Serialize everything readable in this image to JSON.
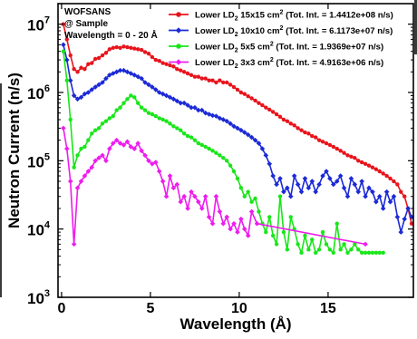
{
  "chart_data": {
    "type": "line",
    "title": "",
    "xlabel": "Wavelength (Å)",
    "ylabel": "Neutron Current (n/s)",
    "xlim": [
      -0.2,
      19.8
    ],
    "ylim": [
      1000,
      20000000
    ],
    "yscale": "log",
    "x_ticks": [
      "0",
      "5",
      "10",
      "15"
    ],
    "y_ticks": [
      {
        "base": "10",
        "exp": "3"
      },
      {
        "base": "10",
        "exp": "4"
      },
      {
        "base": "10",
        "exp": "5"
      },
      {
        "base": "10",
        "exp": "6"
      },
      {
        "base": "10",
        "exp": "7"
      }
    ],
    "annotation": [
      "WOFSANS",
      "@ Sample",
      "Wavelength = 0 - 20 Å"
    ],
    "legend_position": "top-right",
    "series": [
      {
        "name": "Lower LD2 15x15 cm2 (Tot. Int. = 1.4412e+08 n/s)",
        "legend": {
          "pre": "Lower LD",
          "sub": "2",
          "mid": " 15x15 cm",
          "sup": "2",
          "post": " (Tot. Int. = 1.4412e+08 n/s)"
        },
        "color": "#e8141c",
        "marker": "circle",
        "x": [
          0.1,
          0.3,
          0.5,
          0.7,
          0.9,
          1.1,
          1.3,
          1.5,
          1.7,
          1.9,
          2.1,
          2.3,
          2.5,
          2.7,
          2.9,
          3.1,
          3.3,
          3.5,
          3.7,
          3.9,
          4.1,
          4.3,
          4.5,
          4.7,
          4.9,
          5.1,
          5.3,
          5.5,
          5.7,
          5.9,
          6.1,
          6.3,
          6.5,
          6.7,
          6.9,
          7.1,
          7.3,
          7.5,
          7.7,
          7.9,
          8.1,
          8.3,
          8.5,
          8.7,
          8.9,
          9.1,
          9.3,
          9.5,
          9.7,
          9.9,
          10.1,
          10.3,
          10.5,
          10.7,
          10.9,
          11.1,
          11.3,
          11.5,
          11.7,
          11.9,
          12.1,
          12.3,
          12.5,
          12.7,
          12.9,
          13.1,
          13.3,
          13.5,
          13.7,
          13.9,
          14.1,
          14.3,
          14.5,
          14.7,
          14.9,
          15.1,
          15.3,
          15.5,
          15.7,
          15.9,
          16.1,
          16.3,
          16.5,
          16.7,
          16.9,
          17.1,
          17.3,
          17.5,
          17.7,
          17.9,
          18.1,
          18.3,
          18.5,
          18.7,
          18.9,
          19.1,
          19.3,
          19.5,
          19.7
        ],
        "y": [
          10000000,
          6000000,
          3500000,
          2200000,
          2000000,
          2300000,
          2200000,
          2600000,
          2700000,
          3100000,
          3200000,
          3500000,
          3800000,
          4300000,
          4500000,
          4600000,
          4500000,
          4700000,
          4600000,
          4500000,
          4400000,
          4300000,
          4200000,
          3900000,
          3700000,
          3300000,
          3000000,
          2900000,
          2700000,
          2600000,
          2500000,
          2400000,
          2200000,
          2100000,
          2000000,
          1900000,
          1800000,
          1700000,
          1700000,
          1600000,
          1600000,
          1500000,
          1500000,
          1400000,
          1500000,
          1400000,
          1400000,
          1300000,
          1200000,
          1100000,
          1000000,
          950000,
          880000,
          820000,
          760000,
          700000,
          650000,
          600000,
          560000,
          520000,
          480000,
          440000,
          400000,
          380000,
          350000,
          330000,
          300000,
          280000,
          260000,
          250000,
          230000,
          220000,
          200000,
          190000,
          180000,
          170000,
          160000,
          150000,
          140000,
          130000,
          120000,
          115000,
          110000,
          100000,
          95000,
          90000,
          85000,
          80000,
          75000,
          70000,
          65000,
          60000,
          55000,
          50000,
          45000,
          35000,
          30000,
          20000,
          12000
        ]
      },
      {
        "name": "Lower LD2 10x10 cm2 (Tot. Int. = 6.1173e+07 n/s)",
        "legend": {
          "pre": "Lower LD",
          "sub": "2",
          "mid": " 10x10 cm",
          "sup": "2",
          "post": " (Tot. Int. = 6.1173e+07 n/s)"
        },
        "color": "#1c2ad6",
        "marker": "diamond",
        "x": [
          0.1,
          0.3,
          0.5,
          0.7,
          0.9,
          1.1,
          1.3,
          1.5,
          1.7,
          1.9,
          2.1,
          2.3,
          2.5,
          2.7,
          2.9,
          3.1,
          3.3,
          3.5,
          3.7,
          3.9,
          4.1,
          4.3,
          4.5,
          4.7,
          4.9,
          5.1,
          5.3,
          5.5,
          5.7,
          5.9,
          6.1,
          6.3,
          6.5,
          6.7,
          6.9,
          7.1,
          7.3,
          7.5,
          7.7,
          7.9,
          8.1,
          8.3,
          8.5,
          8.7,
          8.9,
          9.1,
          9.3,
          9.5,
          9.7,
          9.9,
          10.1,
          10.3,
          10.5,
          10.7,
          10.9,
          11.1,
          11.3,
          11.5,
          11.7,
          11.9,
          12.1,
          12.3,
          12.5,
          12.7,
          12.9,
          13.1,
          13.3,
          13.5,
          13.7,
          13.9,
          14.1,
          14.3,
          14.5,
          14.7,
          14.9,
          15.1,
          15.3,
          15.5,
          15.7,
          15.9,
          16.1,
          16.3,
          16.5,
          16.7,
          16.9,
          17.1,
          17.3,
          17.5,
          17.7,
          17.9,
          18.1,
          18.3,
          18.5,
          18.7,
          18.9,
          19.1,
          19.3,
          19.5,
          19.7
        ],
        "y": [
          5000000,
          3000000,
          1500000,
          900000,
          800000,
          850000,
          950000,
          1000000,
          1100000,
          1200000,
          1300000,
          1400000,
          1600000,
          1800000,
          1900000,
          2000000,
          2100000,
          2100000,
          2000000,
          1900000,
          1800000,
          1700000,
          1600000,
          1400000,
          1300000,
          1200000,
          1100000,
          1000000,
          950000,
          900000,
          850000,
          800000,
          750000,
          700000,
          700000,
          650000,
          600000,
          600000,
          550000,
          550000,
          500000,
          480000,
          460000,
          450000,
          420000,
          400000,
          380000,
          350000,
          320000,
          300000,
          280000,
          260000,
          240000,
          220000,
          200000,
          180000,
          150000,
          120000,
          90000,
          60000,
          45000,
          55000,
          35000,
          40000,
          30000,
          60000,
          45000,
          35000,
          55000,
          40000,
          50000,
          35000,
          45000,
          60000,
          70000,
          55000,
          45000,
          50000,
          60000,
          40000,
          30000,
          55000,
          45000,
          35000,
          50000,
          30000,
          40000,
          35000,
          25000,
          30000,
          20000,
          35000,
          25000,
          30000,
          15000,
          9000,
          14000,
          20000,
          15000
        ]
      },
      {
        "name": "Lower LD2 5x5 cm2 (Tot. Int. = 1.9369e+07 n/s)",
        "legend": {
          "pre": "Lower LD",
          "sub": "2",
          "mid": " 5x5 cm",
          "sup": "2",
          "post": " (Tot. Int. = 1.9369e+07 n/s)"
        },
        "color": "#19e619",
        "marker": "circle",
        "x": [
          0.1,
          0.3,
          0.5,
          0.7,
          0.9,
          1.1,
          1.3,
          1.5,
          1.7,
          1.9,
          2.1,
          2.3,
          2.5,
          2.7,
          2.9,
          3.1,
          3.3,
          3.5,
          3.7,
          3.9,
          4.1,
          4.3,
          4.5,
          4.7,
          4.9,
          5.1,
          5.3,
          5.5,
          5.7,
          5.9,
          6.1,
          6.3,
          6.5,
          6.7,
          6.9,
          7.1,
          7.3,
          7.5,
          7.7,
          7.9,
          8.1,
          8.3,
          8.5,
          8.7,
          8.9,
          9.1,
          9.3,
          9.5,
          9.7,
          9.9,
          10.1,
          10.3,
          10.5,
          10.7,
          10.9,
          11.1,
          11.3,
          11.5,
          11.7,
          11.9,
          12.1,
          12.3,
          12.5,
          12.7,
          12.9,
          13.1,
          13.3,
          13.5,
          13.7,
          13.9,
          14.1,
          14.3,
          14.5,
          14.7,
          14.9,
          15.1,
          15.3,
          15.5,
          15.7,
          15.9,
          16.1,
          16.3,
          16.5,
          16.7,
          16.9,
          17.1,
          17.3,
          17.5,
          17.7,
          17.9,
          18.1
        ],
        "y": [
          4000000,
          1500000,
          400000,
          80000,
          120000,
          150000,
          160000,
          200000,
          250000,
          280000,
          300000,
          350000,
          380000,
          420000,
          450000,
          550000,
          600000,
          700000,
          800000,
          900000,
          850000,
          700000,
          600000,
          550000,
          500000,
          480000,
          450000,
          420000,
          400000,
          380000,
          350000,
          320000,
          300000,
          280000,
          250000,
          230000,
          220000,
          200000,
          180000,
          170000,
          160000,
          150000,
          140000,
          130000,
          120000,
          110000,
          100000,
          85000,
          70000,
          55000,
          40000,
          30000,
          35000,
          25000,
          28000,
          18000,
          12000,
          9000,
          15000,
          8000,
          6000,
          30000,
          9000,
          5000,
          15000,
          10000,
          6000,
          4500,
          8000,
          5000,
          7000,
          4500,
          5000,
          9000,
          6000,
          5000,
          4500,
          12000,
          5000,
          6000,
          4500,
          5000,
          6000,
          5000,
          4500,
          4500,
          4500,
          4500,
          4500,
          4500,
          4500
        ]
      },
      {
        "name": "Lower LD2 3x3 cm2 (Tot. Int. = 4.9163e+06 n/s)",
        "legend": {
          "pre": "Lower LD",
          "sub": "2",
          "mid": " 3x3 cm",
          "sup": "2",
          "post": " (Tot. Int. = 4.9163e+06 n/s)"
        },
        "color": "#ee1cee",
        "marker": "diamond",
        "x": [
          0.1,
          0.3,
          0.5,
          0.7,
          0.9,
          1.1,
          1.3,
          1.5,
          1.7,
          1.9,
          2.1,
          2.3,
          2.5,
          2.7,
          2.9,
          3.1,
          3.3,
          3.5,
          3.7,
          3.9,
          4.1,
          4.3,
          4.5,
          4.7,
          4.9,
          5.1,
          5.3,
          5.5,
          5.7,
          5.9,
          6.1,
          6.3,
          6.5,
          6.7,
          6.9,
          7.1,
          7.3,
          7.5,
          7.7,
          7.9,
          8.1,
          8.3,
          8.5,
          8.7,
          8.9,
          9.1,
          9.3,
          9.5,
          9.7,
          9.9,
          10.1,
          10.3,
          10.5,
          10.7,
          11.0,
          17.1
        ],
        "y": [
          300000,
          150000,
          50000,
          6000,
          40000,
          50000,
          60000,
          70000,
          80000,
          100000,
          110000,
          120000,
          100000,
          150000,
          180000,
          200000,
          180000,
          170000,
          190000,
          160000,
          150000,
          180000,
          140000,
          120000,
          100000,
          90000,
          95000,
          70000,
          50000,
          30000,
          60000,
          40000,
          45000,
          25000,
          30000,
          20000,
          35000,
          30000,
          25000,
          20000,
          30000,
          15000,
          12000,
          30000,
          18000,
          12000,
          15000,
          10000,
          12000,
          9000,
          14000,
          10000,
          8000,
          18000,
          12000,
          6000
        ]
      }
    ]
  }
}
